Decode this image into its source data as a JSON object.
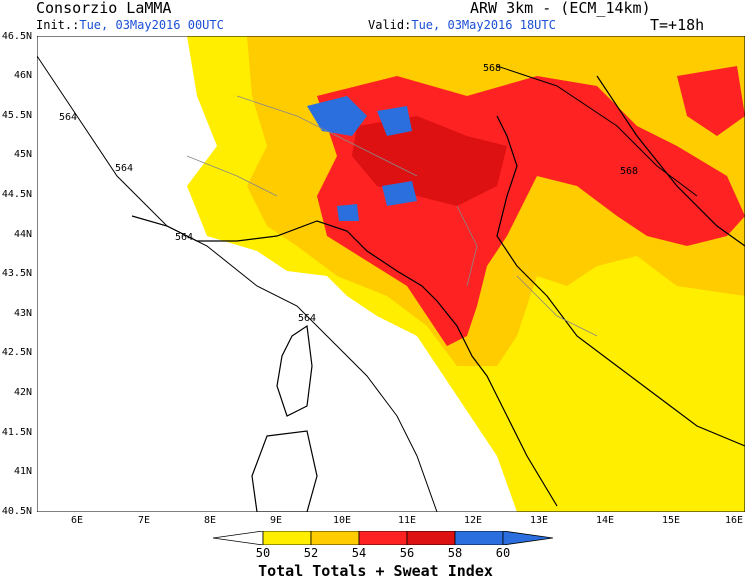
{
  "header": {
    "provider": "Consorzio LaMMA",
    "model": "ARW 3km - (ECM_14km)",
    "init_label": "Init.:",
    "init_value": "Tue, 03May2016 00UTC",
    "valid_label": "Valid:",
    "valid_value": "Tue, 03May2016 18UTC",
    "lead_time": "T=+18h"
  },
  "axes": {
    "lat_labels": [
      "46.5N",
      "46N",
      "45.5N",
      "45N",
      "44.5N",
      "44N",
      "43.5N",
      "43N",
      "42.5N",
      "42N",
      "41.5N",
      "41N",
      "40.5N"
    ],
    "lon_labels": [
      "6E",
      "7E",
      "8E",
      "9E",
      "10E",
      "11E",
      "12E",
      "13E",
      "14E",
      "15E",
      "16E"
    ]
  },
  "contours": {
    "geopotential_labels": [
      "564",
      "564",
      "564",
      "564",
      "564",
      "568",
      "568"
    ]
  },
  "colorbar": {
    "title": "Total Totals + Sweat Index",
    "ticks": [
      "50",
      "52",
      "54",
      "56",
      "58",
      "60"
    ],
    "colors": [
      "#ffffff",
      "#ffee00",
      "#ffcc00",
      "#ff2222",
      "#dd1111",
      "#2a6fdd"
    ]
  }
}
